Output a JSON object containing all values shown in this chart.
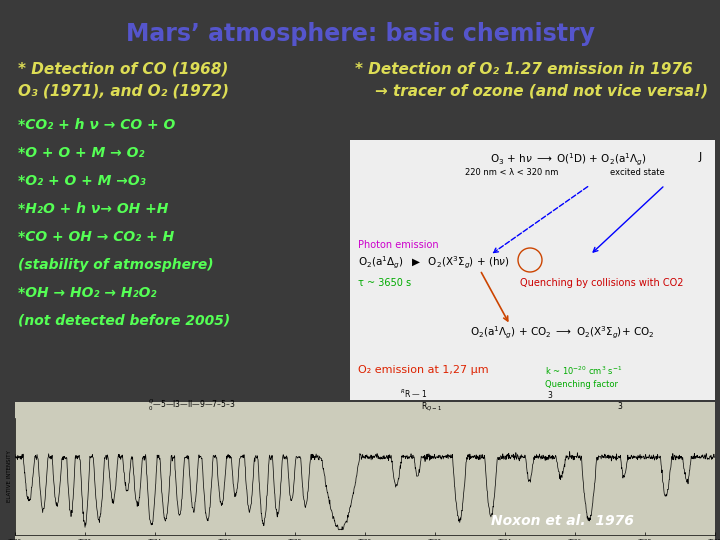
{
  "bg_color": "#3a3a3a",
  "title": "Mars’ atmosphere: basic chemistry",
  "title_color": "#5555cc",
  "title_fontsize": 17,
  "detection_text_color": "#dddd55",
  "detection_line1": "* Detection of CO (1968)",
  "detection_line2": "O₃ (1971), and O₂ (1972)",
  "right_text_color": "#dddd55",
  "right_line1": "* Detection of O₂ 1.27 emission in 1976",
  "right_line2": "→ tracer of ozone (and not vice versa!)",
  "chem_color": "#55ff55",
  "chem_lines": [
    "*CO₂ + h ν → CO + O",
    "*O + O + M → O₂",
    "*O₂ + O + M →O₃",
    "*H₂O + h ν→ OH +H",
    "*CO + OH → CO₂ + H",
    "(stability of atmosphere)",
    "*OH → HO₂ → H₂O₂",
    "(not detected before 2005)"
  ],
  "noxon_text": "Noxon et al.  1976",
  "noxon_color": "#ffffff"
}
